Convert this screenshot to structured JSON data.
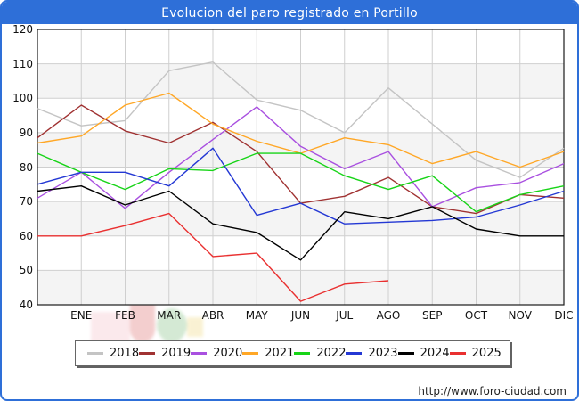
{
  "window": {
    "title": "Evolucion del paro registrado en Portillo"
  },
  "footer": {
    "url": "http://www.foro-ciudad.com"
  },
  "chart_data": {
    "type": "line",
    "title": "Evolucion del paro registrado en Portillo",
    "xlabel": "",
    "ylabel": "",
    "ylim": [
      40,
      120
    ],
    "y_ticks": [
      40,
      50,
      60,
      70,
      80,
      90,
      100,
      110,
      120
    ],
    "grid": true,
    "striped_bands": [
      [
        100,
        110
      ],
      [
        80,
        90
      ],
      [
        60,
        70
      ],
      [
        40,
        50
      ]
    ],
    "legend_position": "bottom",
    "categories": [
      "",
      "ENE",
      "FEB",
      "MAR",
      "ABR",
      "MAY",
      "JUN",
      "JUL",
      "AGO",
      "SEP",
      "OCT",
      "NOV",
      "DIC"
    ],
    "x_note": "first point sits on the left axis edge without a label",
    "series": [
      {
        "name": "2018",
        "color": "#c4c4c4",
        "values": [
          97,
          92,
          93.5,
          108,
          110.5,
          99.5,
          96.5,
          90,
          103,
          92.5,
          82,
          77,
          85.5
        ]
      },
      {
        "name": "2019",
        "color": "#a03232",
        "values": [
          88.5,
          98,
          90.5,
          87,
          93,
          84.5,
          69.5,
          71.5,
          77,
          68.5,
          66.5,
          72,
          71
        ]
      },
      {
        "name": "2020",
        "color": "#a950e0",
        "values": [
          71,
          78.5,
          68,
          78.5,
          88,
          97.5,
          86,
          79.5,
          84.5,
          68.5,
          74,
          75.5,
          81
        ]
      },
      {
        "name": "2021",
        "color": "#ffa726",
        "values": [
          87,
          89,
          98,
          101.5,
          92.5,
          87.5,
          84,
          88.5,
          86.5,
          81,
          84.5,
          80,
          84.5
        ]
      },
      {
        "name": "2022",
        "color": "#17d417",
        "values": [
          84,
          78.5,
          73.5,
          79.5,
          79,
          84,
          84,
          77.5,
          73.5,
          77.5,
          67,
          72,
          74.5
        ]
      },
      {
        "name": "2023",
        "color": "#2438d4",
        "values": [
          75,
          78.5,
          78.5,
          74.5,
          85.5,
          66,
          69.5,
          63.5,
          64,
          64.5,
          65.5,
          69,
          73
        ]
      },
      {
        "name": "2024",
        "color": "#000000",
        "values": [
          73,
          74.5,
          69,
          73,
          63.5,
          61,
          53,
          67,
          65,
          68.5,
          62,
          60,
          60
        ]
      },
      {
        "name": "2025",
        "color": "#e93030",
        "values": [
          60,
          60,
          63,
          66.5,
          54,
          55,
          41,
          46,
          47
        ]
      }
    ]
  },
  "colors": {
    "accent_blue": "#2e6fd8",
    "band_fill": "#f4f4f4",
    "gridline": "#cfcfcf",
    "plot_border": "#1a1a1a"
  }
}
